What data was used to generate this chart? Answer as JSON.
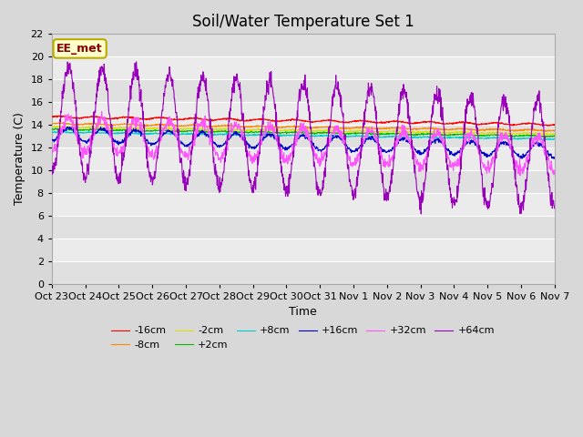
{
  "title": "Soil/Water Temperature Set 1",
  "xlabel": "Time",
  "ylabel": "Temperature (C)",
  "ylim": [
    0,
    22
  ],
  "yticks": [
    0,
    2,
    4,
    6,
    8,
    10,
    12,
    14,
    16,
    18,
    20,
    22
  ],
  "annotation_text": "EE_met",
  "annotation_bg": "#ffffcc",
  "annotation_border": "#bbaa00",
  "annotation_text_color": "#880000",
  "legend_entries": [
    "-16cm",
    "-8cm",
    "-2cm",
    "+2cm",
    "+8cm",
    "+16cm",
    "+32cm",
    "+64cm"
  ],
  "line_colors": [
    "#ff0000",
    "#ff8800",
    "#dddd00",
    "#00bb00",
    "#00cccc",
    "#0000cc",
    "#ff55ff",
    "#9900bb"
  ],
  "x_tick_labels": [
    "Oct 23",
    "Oct 24",
    "Oct 25",
    "Oct 26",
    "Oct 27",
    "Oct 28",
    "Oct 29",
    "Oct 30",
    "Oct 31",
    "Nov 1",
    "Nov 2",
    "Nov 3",
    "Nov 4",
    "Nov 5",
    "Nov 6",
    "Nov 7"
  ],
  "x_tick_positions": [
    0,
    1,
    2,
    3,
    4,
    5,
    6,
    7,
    8,
    9,
    10,
    11,
    12,
    13,
    14,
    15
  ],
  "title_fontsize": 12,
  "axis_fontsize": 9,
  "tick_fontsize": 8
}
